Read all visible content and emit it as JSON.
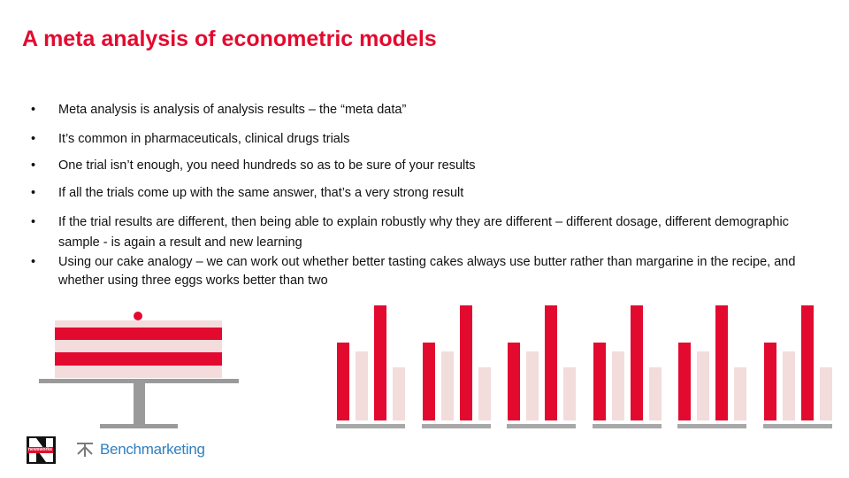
{
  "slide": {
    "title": "A meta analysis of econometric models",
    "bullets": [
      {
        "text": "Meta analysis is analysis of analysis results – the “meta data”"
      },
      {
        "text": "It’s common in pharmaceuticals, clinical drugs trials"
      },
      {
        "text": "One trial isn’t enough, you need hundreds so as to be sure of your results"
      },
      {
        "text": "If all the trials come up with the same answer, that’s a very strong result"
      },
      {
        "text": "If the trial results are different, then being able to explain robustly why they are different – different dosage, different demographic sample - is again a result and new learning"
      },
      {
        "text": "Using our cake analogy – we can work out whether better tasting cakes always use butter rather than margarine in the recipe, and whether using three eggs works better than two"
      }
    ],
    "bullet_glyph": "•"
  },
  "illustration": {
    "cake_icon": "cake-on-stand-icon",
    "bar_groups": 6,
    "bar_pattern_relative": [
      0.68,
      0.6,
      1.0,
      0.46
    ],
    "colors": {
      "accent": "#e30a2f",
      "pale": "#f2dcdc",
      "cake_light": "#f5dcdc",
      "stand": "#9a9a9a",
      "baseline": "#a8a8a8"
    }
  },
  "footer": {
    "logo_small_text": "newsworks",
    "logo_letter": "N",
    "partner_icon": "benchmarketing-icon",
    "partner_name": "Benchmarketing"
  }
}
